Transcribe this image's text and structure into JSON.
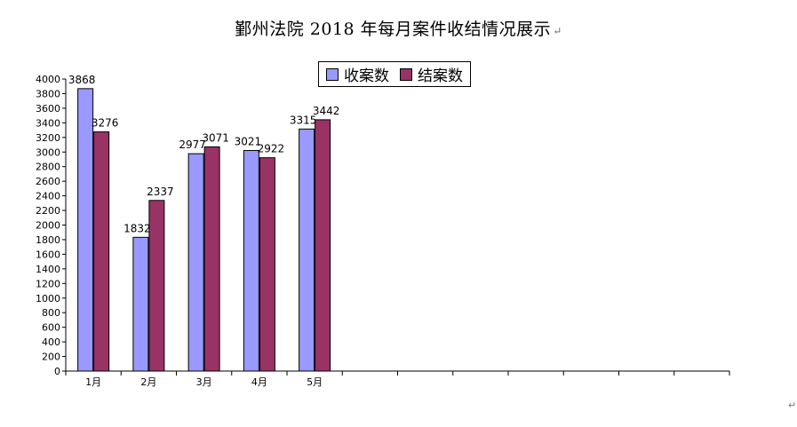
{
  "title": "鄞州法院 2018 年每月案件收结情况展示",
  "title_mark": "↵",
  "corner_mark": "↵",
  "chart_data": {
    "type": "bar",
    "title": "鄞州法院 2018 年每月案件收结情况展示",
    "categories": [
      "1月",
      "2月",
      "3月",
      "4月",
      "5月",
      "",
      "",
      "",
      "",
      "",
      "",
      ""
    ],
    "series": [
      {
        "name": "收案数",
        "color": "#9999ff",
        "values": [
          3868,
          1832,
          2977,
          3021,
          3315,
          null,
          null,
          null,
          null,
          null,
          null,
          null
        ]
      },
      {
        "name": "结案数",
        "color": "#993366",
        "values": [
          3276,
          2337,
          3071,
          2922,
          3442,
          null,
          null,
          null,
          null,
          null,
          null,
          null
        ]
      }
    ],
    "ylim": [
      0,
      4000
    ],
    "ytick_step": 200,
    "yticks": [
      "0",
      "200",
      "400",
      "600",
      "800",
      "1000",
      "1200",
      "1400",
      "1600",
      "1800",
      "2000",
      "2200",
      "2400",
      "2600",
      "2800",
      "3000",
      "3200",
      "3400",
      "3600",
      "3800",
      "4000"
    ],
    "grid": false,
    "legend": "top-center",
    "data_labels": true
  }
}
